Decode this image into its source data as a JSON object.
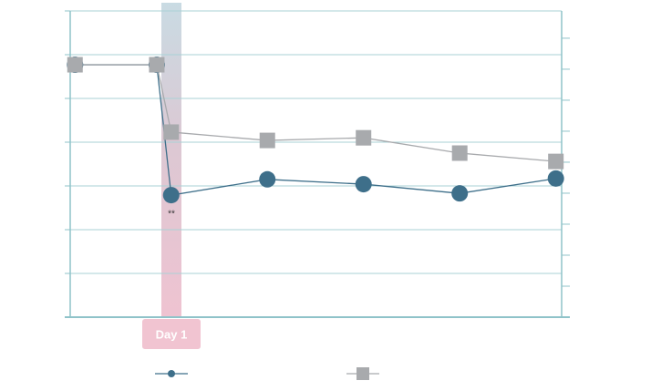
{
  "chart_data": {
    "type": "line",
    "x": [
      0,
      0.85,
      1,
      2,
      3,
      4,
      5
    ],
    "xlim": [
      -0.05,
      5.06
    ],
    "ylim": [
      0,
      7
    ],
    "yticks": [
      0,
      1,
      2,
      3,
      4,
      5,
      6,
      7
    ],
    "y2lim": [
      0,
      9.88
    ],
    "y2ticks": [
      0,
      1,
      2,
      3,
      4,
      5,
      6,
      7,
      8,
      9
    ],
    "grid": true,
    "highlight_label": "Day 1",
    "annotation": "**",
    "series": [
      {
        "marker": "circle",
        "color": "#3e6f8a",
        "values": [
          5.77,
          5.77,
          2.79,
          3.15,
          3.04,
          2.83,
          3.17
        ]
      },
      {
        "marker": "square",
        "color": "#a8aaad",
        "values": [
          5.77,
          5.77,
          4.23,
          4.04,
          4.1,
          3.75,
          3.56
        ]
      }
    ]
  }
}
